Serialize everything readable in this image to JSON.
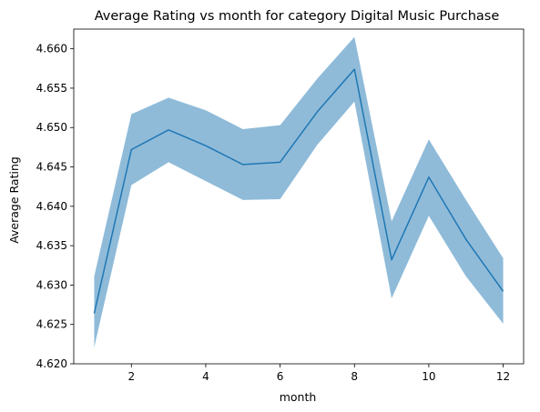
{
  "chart_data": {
    "type": "line",
    "title": "Average Rating vs month for category Digital Music Purchase",
    "xlabel": "month",
    "ylabel": "Average Rating",
    "xlim": [
      0.45,
      12.55
    ],
    "ylim": [
      4.62,
      4.6625
    ],
    "xticks": [
      2,
      4,
      6,
      8,
      10,
      12
    ],
    "xtick_labels": [
      "2",
      "4",
      "6",
      "8",
      "10",
      "12"
    ],
    "yticks": [
      4.62,
      4.625,
      4.63,
      4.635,
      4.64,
      4.645,
      4.65,
      4.655,
      4.66
    ],
    "ytick_labels": [
      "4.620",
      "4.625",
      "4.630",
      "4.635",
      "4.640",
      "4.645",
      "4.650",
      "4.655",
      "4.660"
    ],
    "grid": false,
    "legend": "none",
    "line_color": "#1f77b4",
    "band_color": "#1f77b4",
    "series": [
      {
        "x": [
          1,
          2,
          3,
          4,
          5,
          6,
          7,
          8,
          9,
          10,
          11,
          12
        ],
        "values": [
          4.6264,
          4.6472,
          4.6497,
          4.6477,
          4.6453,
          4.6456,
          4.652,
          4.6574,
          4.6332,
          4.6437,
          4.6358,
          4.6292
        ],
        "lower": [
          4.6221,
          4.6427,
          4.6456,
          4.6432,
          4.6408,
          4.6409,
          4.6478,
          4.6533,
          4.6283,
          4.6388,
          4.6311,
          4.6251
        ],
        "upper": [
          4.6311,
          4.6517,
          4.6538,
          4.6522,
          4.6498,
          4.6503,
          4.6562,
          4.6615,
          4.6381,
          4.6485,
          4.6408,
          4.6334
        ]
      }
    ]
  }
}
